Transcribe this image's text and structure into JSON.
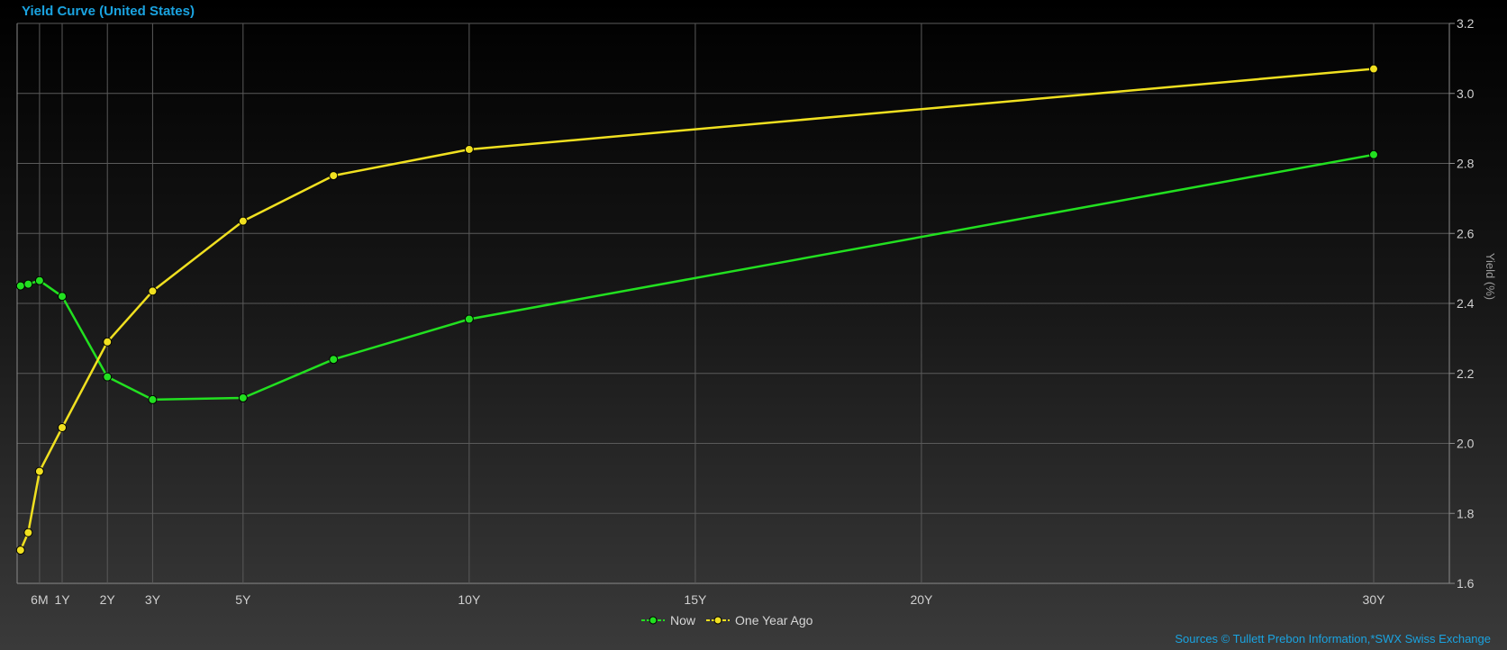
{
  "chart_data": {
    "type": "line",
    "title": "Yield Curve (United States)",
    "ylabel": "Yield (%)",
    "ylim": [
      1.6,
      3.2
    ],
    "yticks": [
      1.6,
      1.8,
      2.0,
      2.2,
      2.4,
      2.6,
      2.8,
      3.0,
      3.2
    ],
    "xlim": [
      0,
      32.5
    ],
    "xticks": [
      {
        "value": 0.5,
        "label": "6M"
      },
      {
        "value": 1,
        "label": "1Y"
      },
      {
        "value": 2,
        "label": "2Y"
      },
      {
        "value": 3,
        "label": "3Y"
      },
      {
        "value": 5,
        "label": "5Y"
      },
      {
        "value": 10,
        "label": "10Y"
      },
      {
        "value": 15,
        "label": "15Y"
      },
      {
        "value": 20,
        "label": "20Y"
      },
      {
        "value": 30,
        "label": "30Y"
      }
    ],
    "grid": true,
    "legend_position": "bottom-center",
    "x": [
      0.08,
      0.25,
      0.5,
      1,
      2,
      3,
      5,
      7,
      10,
      30
    ],
    "series": [
      {
        "name": "Now",
        "color": "#22e020",
        "values": [
          2.45,
          2.455,
          2.465,
          2.42,
          2.19,
          2.125,
          2.13,
          2.24,
          2.355,
          2.825
        ]
      },
      {
        "name": "One Year Ago",
        "color": "#f0e020",
        "values": [
          1.695,
          1.745,
          1.92,
          2.045,
          2.29,
          2.435,
          2.635,
          2.765,
          2.84,
          3.07
        ]
      }
    ]
  },
  "sources_text": "Sources  © Tullett Prebon Information,*SWX Swiss Exchange"
}
